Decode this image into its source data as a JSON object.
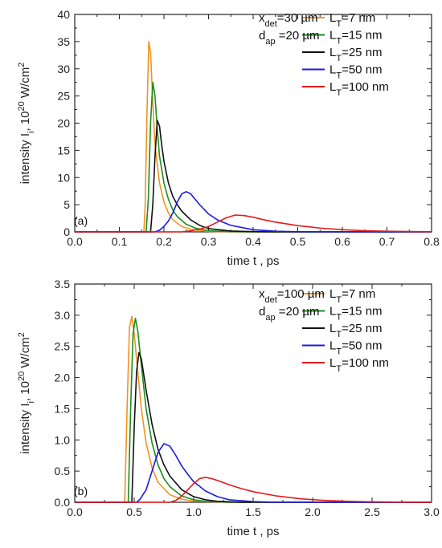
{
  "chart_data": [
    {
      "type": "line",
      "panel_label": "(a)",
      "xlabel": "time t , ps",
      "ylabel": "intensity I_i , 10^20 W/cm^2",
      "ylabel_parts": {
        "main": "intensity I",
        "sub": "i",
        "mid": ", 10",
        "sup": "20",
        "unit": " W/cm",
        "sup2": "2"
      },
      "xlim": [
        0.0,
        0.8
      ],
      "ylim": [
        0,
        40
      ],
      "xticks": [
        0.0,
        0.1,
        0.2,
        0.3,
        0.4,
        0.5,
        0.6,
        0.7,
        0.8
      ],
      "xtick_labels": [
        "0.0",
        "0.1",
        "0.2",
        "0.3",
        "0.4",
        "0.5",
        "0.6",
        "0.7",
        "0.8"
      ],
      "yticks": [
        0,
        5,
        10,
        15,
        20,
        25,
        30,
        35,
        40
      ],
      "ytick_labels": [
        "0",
        "5",
        "10",
        "15",
        "20",
        "25",
        "30",
        "35",
        "40"
      ],
      "grid": false,
      "legend_position": "top-right",
      "annotations": [
        {
          "main": "x",
          "sub": "det",
          "rest": "=30 µm"
        },
        {
          "main": "d",
          "sub": "ap",
          "rest": " =20 µm"
        }
      ],
      "series": [
        {
          "name": "L_T=7 nm",
          "name_parts": {
            "main": "L",
            "sub": "T",
            "rest": "=7 nm"
          },
          "color": "#f39221",
          "x": [
            0.0,
            0.155,
            0.158,
            0.162,
            0.166,
            0.17,
            0.175,
            0.18,
            0.19,
            0.2,
            0.21,
            0.22,
            0.24,
            0.26,
            0.28,
            0.3,
            0.35,
            0.8
          ],
          "y": [
            0,
            0,
            5,
            22,
            35,
            33,
            24,
            16,
            9,
            5.5,
            3.5,
            2.2,
            1,
            0.5,
            0.25,
            0.1,
            0,
            0
          ]
        },
        {
          "name": "L_T=15 nm",
          "name_parts": {
            "main": "L",
            "sub": "T",
            "rest": "=15 nm"
          },
          "color": "#1e8c1e",
          "x": [
            0.0,
            0.16,
            0.165,
            0.17,
            0.175,
            0.18,
            0.185,
            0.19,
            0.2,
            0.21,
            0.22,
            0.23,
            0.25,
            0.27,
            0.3,
            0.35,
            0.4,
            0.8
          ],
          "y": [
            0,
            0,
            6,
            20,
            27.5,
            25,
            19,
            14,
            9,
            6,
            4,
            2.8,
            1.4,
            0.7,
            0.2,
            0.05,
            0,
            0
          ]
        },
        {
          "name": "L_T=25 nm",
          "name_parts": {
            "main": "L",
            "sub": "T",
            "rest": "=25 nm"
          },
          "color": "#111111",
          "x": [
            0.0,
            0.17,
            0.175,
            0.18,
            0.185,
            0.19,
            0.195,
            0.2,
            0.21,
            0.22,
            0.23,
            0.24,
            0.26,
            0.28,
            0.3,
            0.35,
            0.4,
            0.45,
            0.8
          ],
          "y": [
            0,
            0,
            5,
            14,
            20.5,
            19.5,
            16,
            13,
            9,
            6.5,
            5,
            3.8,
            2.2,
            1.2,
            0.6,
            0.15,
            0.05,
            0,
            0
          ]
        },
        {
          "name": "L_T=50 nm",
          "name_parts": {
            "main": "L",
            "sub": "T",
            "rest": "=50 nm"
          },
          "color": "#1a1ae6",
          "x": [
            0.0,
            0.18,
            0.19,
            0.2,
            0.21,
            0.22,
            0.23,
            0.24,
            0.25,
            0.26,
            0.27,
            0.28,
            0.3,
            0.32,
            0.35,
            0.4,
            0.45,
            0.5,
            0.55,
            0.8
          ],
          "y": [
            0,
            0,
            0.3,
            1,
            2,
            3.5,
            5.5,
            7,
            7.4,
            7,
            6,
            5,
            3.3,
            2.2,
            1.2,
            0.4,
            0.12,
            0.03,
            0,
            0
          ]
        },
        {
          "name": "L_T=100 nm",
          "name_parts": {
            "main": "L",
            "sub": "T",
            "rest": "=100 nm"
          },
          "color": "#e61a1a",
          "x": [
            0.0,
            0.24,
            0.26,
            0.28,
            0.3,
            0.32,
            0.34,
            0.36,
            0.38,
            0.4,
            0.42,
            0.45,
            0.5,
            0.55,
            0.6,
            0.65,
            0.7,
            0.75,
            0.8
          ],
          "y": [
            0,
            0,
            0.2,
            0.5,
            1,
            1.8,
            2.6,
            3.1,
            3.0,
            2.7,
            2.3,
            1.8,
            1.15,
            0.7,
            0.4,
            0.22,
            0.12,
            0.06,
            0.03
          ]
        }
      ]
    },
    {
      "type": "line",
      "panel_label": "(b)",
      "xlabel": "time t , ps",
      "ylabel": "intensity I_i , 10^20 W/cm^2",
      "ylabel_parts": {
        "main": "intensity I",
        "sub": "i",
        "mid": ", 10",
        "sup": "20",
        "unit": " W/cm",
        "sup2": "2"
      },
      "xlim": [
        0.0,
        3.0
      ],
      "ylim": [
        0,
        3.5
      ],
      "xticks": [
        0.0,
        0.5,
        1.0,
        1.5,
        2.0,
        2.5,
        3.0
      ],
      "xtick_labels": [
        "0.0",
        "0.5",
        "1.0",
        "1.5",
        "2.0",
        "2.5",
        "3.0"
      ],
      "yticks": [
        0.0,
        0.5,
        1.0,
        1.5,
        2.0,
        2.5,
        3.0,
        3.5
      ],
      "ytick_labels": [
        "0.0",
        "0.5",
        "1.0",
        "1.5",
        "2.0",
        "2.5",
        "3.0",
        "3.5"
      ],
      "grid": false,
      "legend_position": "top-right",
      "annotations": [
        {
          "main": "x",
          "sub": "det",
          "rest": "=100 µm"
        },
        {
          "main": "d",
          "sub": "ap",
          "rest": " =20 µm"
        }
      ],
      "series": [
        {
          "name": "L_T=7 nm",
          "name_parts": {
            "main": "L",
            "sub": "T",
            "rest": "=7 nm"
          },
          "color": "#f39221",
          "x": [
            0.0,
            0.42,
            0.44,
            0.46,
            0.48,
            0.5,
            0.53,
            0.56,
            0.6,
            0.65,
            0.7,
            0.8,
            0.9,
            1.0,
            1.1,
            1.3,
            3.0
          ],
          "y": [
            0,
            0,
            1.5,
            2.8,
            2.98,
            2.7,
            2.1,
            1.5,
            0.95,
            0.55,
            0.32,
            0.12,
            0.05,
            0.02,
            0.01,
            0,
            0
          ]
        },
        {
          "name": "L_T=15 nm",
          "name_parts": {
            "main": "L",
            "sub": "T",
            "rest": "=15 nm"
          },
          "color": "#1e8c1e",
          "x": [
            0.0,
            0.45,
            0.47,
            0.49,
            0.51,
            0.53,
            0.56,
            0.6,
            0.65,
            0.7,
            0.75,
            0.8,
            0.9,
            1.0,
            1.1,
            1.3,
            1.5,
            3.0
          ],
          "y": [
            0,
            0,
            1.5,
            2.7,
            2.95,
            2.75,
            2.2,
            1.5,
            0.95,
            0.6,
            0.38,
            0.25,
            0.1,
            0.04,
            0.015,
            0,
            0,
            0
          ]
        },
        {
          "name": "L_T=25 nm",
          "name_parts": {
            "main": "L",
            "sub": "T",
            "rest": "=25 nm"
          },
          "color": "#111111",
          "x": [
            0.0,
            0.48,
            0.5,
            0.52,
            0.54,
            0.56,
            0.6,
            0.65,
            0.7,
            0.75,
            0.8,
            0.9,
            1.0,
            1.1,
            1.2,
            1.4,
            1.6,
            3.0
          ],
          "y": [
            0,
            0,
            1.2,
            2.1,
            2.4,
            2.3,
            1.8,
            1.25,
            0.85,
            0.6,
            0.42,
            0.2,
            0.09,
            0.04,
            0.015,
            0,
            0,
            0
          ]
        },
        {
          "name": "L_T=50 nm",
          "name_parts": {
            "main": "L",
            "sub": "T",
            "rest": "=50 nm"
          },
          "color": "#1a1ae6",
          "x": [
            0.0,
            0.52,
            0.55,
            0.6,
            0.65,
            0.7,
            0.75,
            0.8,
            0.85,
            0.9,
            0.95,
            1.0,
            1.1,
            1.2,
            1.3,
            1.5,
            1.7,
            2.0,
            3.0
          ],
          "y": [
            0,
            0,
            0.05,
            0.2,
            0.5,
            0.8,
            0.94,
            0.9,
            0.75,
            0.58,
            0.45,
            0.33,
            0.18,
            0.09,
            0.04,
            0.01,
            0,
            0,
            0
          ]
        },
        {
          "name": "L_T=100 nm",
          "name_parts": {
            "main": "L",
            "sub": "T",
            "rest": "=100 nm"
          },
          "color": "#e61a1a",
          "x": [
            0.0,
            0.8,
            0.85,
            0.9,
            0.95,
            1.0,
            1.05,
            1.1,
            1.15,
            1.2,
            1.3,
            1.4,
            1.5,
            1.7,
            1.9,
            2.1,
            2.3,
            2.5,
            2.7,
            3.0
          ],
          "y": [
            0,
            0,
            0.03,
            0.1,
            0.2,
            0.3,
            0.38,
            0.4,
            0.38,
            0.35,
            0.28,
            0.22,
            0.17,
            0.1,
            0.055,
            0.03,
            0.015,
            0.007,
            0.003,
            0
          ]
        }
      ]
    }
  ]
}
